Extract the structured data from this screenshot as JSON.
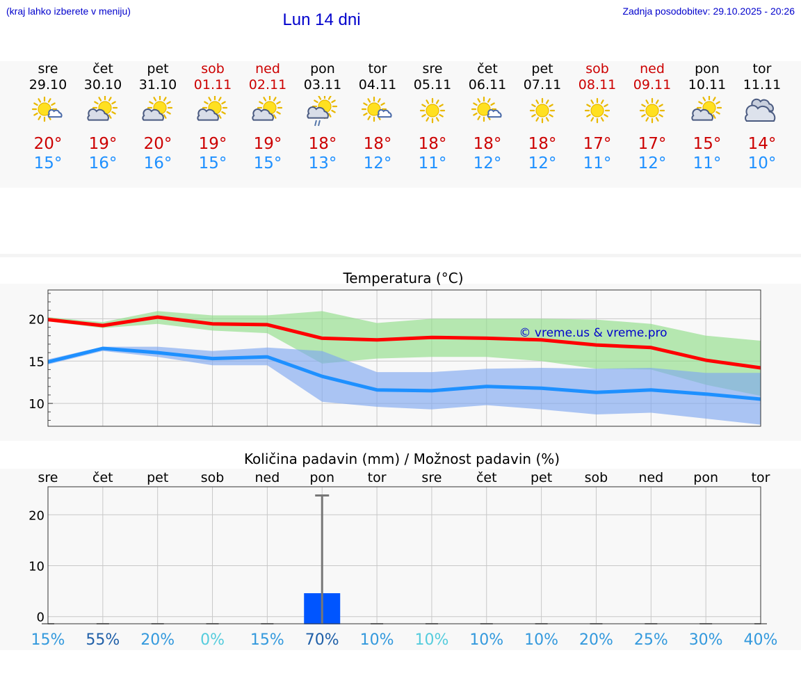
{
  "header": {
    "hint": "(kraj lahko izberete v meniju)",
    "place": "Lun 14 dni",
    "updated": "Zadnja posodobitev: 29.10.2025 - 20:26"
  },
  "colors": {
    "weekday": "#000000",
    "weekend": "#cc0000",
    "max": "#cc0000",
    "min": "#1e90ff",
    "link": "#0000cc"
  },
  "days": [
    {
      "name": "sre",
      "date": "29.10",
      "weekend": false,
      "icon": "sun-cloud-icon",
      "max": "20°",
      "min": "15°"
    },
    {
      "name": "čet",
      "date": "30.10",
      "weekend": false,
      "icon": "partly-cloudy-icon",
      "max": "19°",
      "min": "16°"
    },
    {
      "name": "pet",
      "date": "31.10",
      "weekend": false,
      "icon": "partly-cloudy-icon",
      "max": "20°",
      "min": "16°"
    },
    {
      "name": "sob",
      "date": "01.11",
      "weekend": true,
      "icon": "partly-cloudy-icon",
      "max": "19°",
      "min": "15°"
    },
    {
      "name": "ned",
      "date": "02.11",
      "weekend": true,
      "icon": "partly-cloudy-icon",
      "max": "19°",
      "min": "15°"
    },
    {
      "name": "pon",
      "date": "03.11",
      "weekend": false,
      "icon": "partly-cloudy-rain-icon",
      "max": "18°",
      "min": "13°"
    },
    {
      "name": "tor",
      "date": "04.11",
      "weekend": false,
      "icon": "sun-cloud-icon",
      "max": "18°",
      "min": "12°"
    },
    {
      "name": "sre",
      "date": "05.11",
      "weekend": false,
      "icon": "sun-icon",
      "max": "18°",
      "min": "11°"
    },
    {
      "name": "čet",
      "date": "06.11",
      "weekend": false,
      "icon": "sun-cloud-icon",
      "max": "18°",
      "min": "12°"
    },
    {
      "name": "pet",
      "date": "07.11",
      "weekend": false,
      "icon": "sun-icon",
      "max": "18°",
      "min": "12°"
    },
    {
      "name": "sob",
      "date": "08.11",
      "weekend": true,
      "icon": "sun-icon",
      "max": "17°",
      "min": "11°"
    },
    {
      "name": "ned",
      "date": "09.11",
      "weekend": true,
      "icon": "sun-icon",
      "max": "17°",
      "min": "12°"
    },
    {
      "name": "pon",
      "date": "10.11",
      "weekend": false,
      "icon": "partly-cloudy-icon",
      "max": "15°",
      "min": "11°"
    },
    {
      "name": "tor",
      "date": "11.11",
      "weekend": false,
      "icon": "cloudy-icon",
      "max": "14°",
      "min": "10°"
    }
  ],
  "chart_data": [
    {
      "type": "line",
      "title": "Temperatura (°C)",
      "x": [
        0,
        1,
        2,
        3,
        4,
        5,
        6,
        7,
        8,
        9,
        10,
        11,
        12,
        13
      ],
      "xlim": [
        0,
        13
      ],
      "ylim": [
        7.3,
        23.4
      ],
      "yticks": [
        10,
        15,
        20
      ],
      "series": [
        {
          "name": "max",
          "color": "#ff0000",
          "values": [
            19.9,
            19.2,
            20.2,
            19.4,
            19.3,
            17.7,
            17.5,
            17.8,
            17.7,
            17.5,
            16.9,
            16.6,
            15.1,
            14.2
          ],
          "band": {
            "upper": [
              20.2,
              19.6,
              20.9,
              20.4,
              20.4,
              20.9,
              19.5,
              20.0,
              20.0,
              20.0,
              19.9,
              19.4,
              18.0,
              17.4
            ],
            "lower": [
              19.7,
              18.9,
              19.4,
              18.6,
              18.3,
              14.7,
              15.3,
              15.5,
              15.5,
              15.0,
              14.1,
              14.0,
              12.2,
              10.9
            ]
          }
        },
        {
          "name": "min",
          "color": "#1e90ff",
          "values": [
            14.9,
            16.5,
            16.0,
            15.3,
            15.5,
            13.2,
            11.6,
            11.5,
            12.0,
            11.8,
            11.3,
            11.6,
            11.1,
            10.5
          ],
          "band": {
            "upper": [
              15.2,
              16.7,
              16.7,
              16.2,
              16.6,
              16.2,
              13.7,
              13.7,
              14.1,
              14.2,
              14.1,
              14.2,
              13.6,
              13.6
            ],
            "lower": [
              14.6,
              16.2,
              15.5,
              14.5,
              14.5,
              10.2,
              9.6,
              9.3,
              9.8,
              9.3,
              8.7,
              8.9,
              8.2,
              7.5
            ]
          }
        }
      ],
      "watermark": "© vreme.us & vreme.pro"
    },
    {
      "type": "bar",
      "title": "Količina padavin (mm) / Možnost padavin (%)",
      "categories": [
        "sre",
        "čet",
        "pet",
        "sob",
        "ned",
        "pon",
        "tor",
        "sre",
        "čet",
        "pet",
        "sob",
        "ned",
        "pon",
        "tor"
      ],
      "values": [
        0,
        0,
        0,
        0,
        0,
        4.6,
        0,
        0,
        0,
        0,
        0,
        0,
        0,
        0
      ],
      "range_max": [
        0,
        0,
        0,
        0,
        0,
        23.8,
        0,
        0,
        0,
        0,
        0,
        0,
        0,
        0
      ],
      "ylim": [
        -1.4,
        25.5
      ],
      "yticks": [
        0,
        10,
        20
      ],
      "probability": [
        "15%",
        "55%",
        "20%",
        "0%",
        "15%",
        "70%",
        "10%",
        "10%",
        "10%",
        "10%",
        "20%",
        "25%",
        "30%",
        "40%"
      ],
      "probability_colors": [
        "#3399dd",
        "#1f5fa8",
        "#3399dd",
        "#55ccdd",
        "#3399dd",
        "#1f5fa8",
        "#3399dd",
        "#55ccdd",
        "#3399dd",
        "#3399dd",
        "#3399dd",
        "#3399dd",
        "#3399dd",
        "#3399dd"
      ],
      "bar_color": "#0055ff",
      "range_color": "#777777"
    }
  ]
}
